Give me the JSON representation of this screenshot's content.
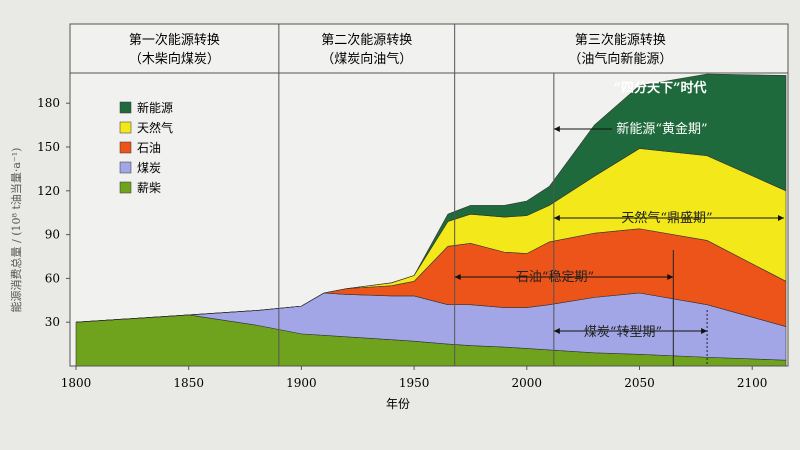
{
  "chart_data": {
    "type": "area",
    "stacked": true,
    "xlabel": "年份",
    "ylabel": "能源消费总量 / (10⁸ t油当量·a⁻¹)",
    "xlim": [
      1800,
      2115
    ],
    "ylim": [
      0,
      200
    ],
    "xticks": [
      1800,
      1850,
      1900,
      1950,
      2000,
      2050,
      2100
    ],
    "yticks": [
      30,
      60,
      90,
      120,
      150,
      180
    ],
    "x": [
      1800,
      1850,
      1880,
      1900,
      1910,
      1920,
      1940,
      1950,
      1965,
      1975,
      1990,
      2000,
      2010,
      2030,
      2050,
      2080,
      2115
    ],
    "series": [
      {
        "name": "薪柴",
        "color": "#6fa31e",
        "values": [
          30,
          35,
          28,
          22,
          21,
          20,
          18,
          17,
          15,
          14,
          13,
          12,
          11,
          9,
          8,
          6,
          4
        ]
      },
      {
        "name": "煤炭",
        "color": "#a3a6e6",
        "values": [
          0,
          0,
          10,
          19,
          29,
          29,
          30,
          31,
          27,
          28,
          27,
          28,
          31,
          38,
          42,
          36,
          23
        ]
      },
      {
        "name": "石油",
        "color": "#ec5419",
        "values": [
          0,
          0,
          0,
          0,
          0,
          4,
          7,
          10,
          40,
          42,
          38,
          37,
          43,
          44,
          44,
          44,
          31
        ]
      },
      {
        "name": "天然气",
        "color": "#f2e81a",
        "values": [
          0,
          0,
          0,
          0,
          0,
          0,
          2,
          4,
          17,
          20,
          24,
          26,
          25,
          39,
          55,
          58,
          62
        ]
      },
      {
        "name": "新能源",
        "color": "#1f6a3c",
        "values": [
          0,
          0,
          0,
          0,
          0,
          0,
          0,
          0,
          5,
          6,
          8,
          10,
          13,
          35,
          43,
          56,
          79
        ]
      }
    ],
    "legend_order": [
      "新能源",
      "天然气",
      "石油",
      "煤炭",
      "薪柴"
    ],
    "legend_position": "top-left",
    "periods": [
      {
        "title": "第一次能源转换",
        "subtitle": "（木柴向煤炭）",
        "from": 1800,
        "to": 1890
      },
      {
        "title": "第二次能源转换",
        "subtitle": "（煤炭向油气）",
        "from": 1890,
        "to": 1968
      },
      {
        "title": "第三次能源转换",
        "subtitle": "（油气向新能源）",
        "from": 1968,
        "to": 2115
      }
    ],
    "annotations": {
      "era": "“四分天下”时代",
      "new_energy": "新能源“黄金期”",
      "gas": "天然气“鼎盛期”",
      "oil": "石油“稳定期”",
      "coal": "煤炭“转型期”"
    }
  }
}
